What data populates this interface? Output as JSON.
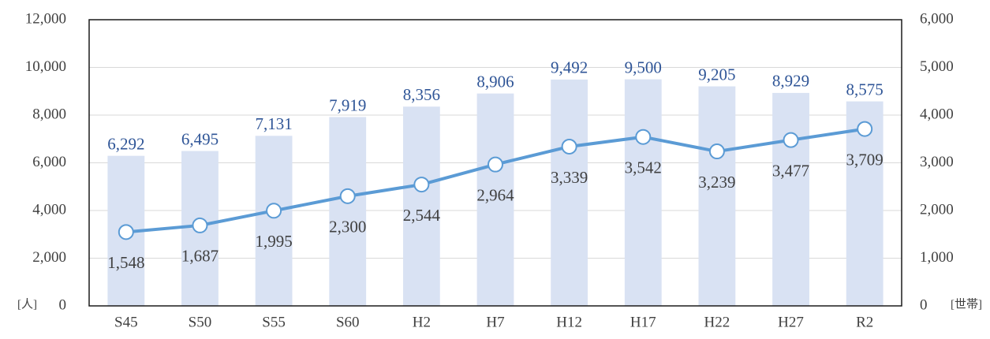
{
  "chart_data": {
    "type": "bar",
    "y_label": "[人]",
    "y2_label": "[世帯]",
    "categories": [
      "S45",
      "S50",
      "S55",
      "S60",
      "H2",
      "H7",
      "H12",
      "H17",
      "H22",
      "H27",
      "R2"
    ],
    "series": [
      {
        "type": "bar",
        "axis": "y",
        "color": "#d9e2f3",
        "label_color": "#2f5597",
        "values": [
          6292,
          6495,
          7131,
          7919,
          8356,
          8906,
          9492,
          9500,
          9205,
          8929,
          8575
        ],
        "value_labels": [
          "6,292",
          "6,495",
          "7,131",
          "7,919",
          "8,356",
          "8,906",
          "9,492",
          "9,500",
          "9,205",
          "8,929",
          "8,575"
        ]
      },
      {
        "type": "line",
        "axis": "y2",
        "color": "#5b9bd5",
        "label_color": "#404040",
        "values": [
          1548,
          1687,
          1995,
          2300,
          2544,
          2964,
          3339,
          3542,
          3239,
          3477,
          3709
        ],
        "value_labels": [
          "1,548",
          "1,687",
          "1,995",
          "2,300",
          "2,544",
          "2,964",
          "3,339",
          "3,542",
          "3,239",
          "3,477",
          "3,709"
        ]
      }
    ],
    "ylim": [
      0,
      12000
    ],
    "yticks": [
      0,
      {
        "value": 2000,
        "label": "2,000"
      },
      {
        "value": 4000,
        "label": "4,000"
      },
      {
        "value": 6000,
        "label": "6,000"
      },
      {
        "value": 8000,
        "label": "8,000"
      },
      {
        "value": 10000,
        "label": "10,000"
      },
      {
        "value": 12000,
        "label": "12,000"
      }
    ],
    "y2lim": [
      0,
      6000
    ],
    "y2ticks": [
      0,
      {
        "value": 1000,
        "label": "1,000"
      },
      {
        "value": 2000,
        "label": "2,000"
      },
      {
        "value": 3000,
        "label": "3,000"
      },
      {
        "value": 4000,
        "label": "4,000"
      },
      {
        "value": 5000,
        "label": "5,000"
      },
      {
        "value": 6000,
        "label": "6,000"
      }
    ],
    "grid": true
  }
}
